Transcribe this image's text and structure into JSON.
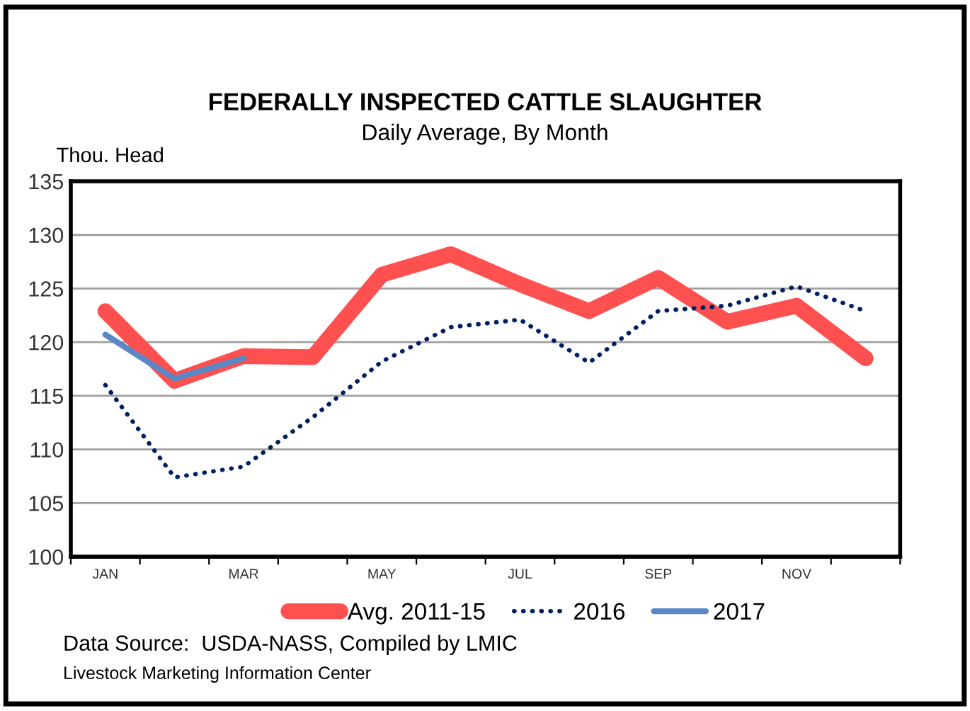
{
  "chart_data": {
    "type": "line",
    "title": "FEDERALLY INSPECTED CATTLE SLAUGHTER",
    "subtitle": "Daily Average, By Month",
    "ylabel": "Thou. Head",
    "categories": [
      "JAN",
      null,
      "MAR",
      null,
      "MAY",
      null,
      "JUL",
      null,
      "SEP",
      null,
      "NOV",
      null
    ],
    "series": [
      {
        "name": "Avg. 2011-15",
        "color": "#ff5050",
        "line_style": "solid",
        "values": [
          122.9,
          116.4,
          118.7,
          118.6,
          126.3,
          128.2,
          125.4,
          122.9,
          126.0,
          121.9,
          123.4,
          118.5
        ]
      },
      {
        "name": "2016",
        "color": "#002060",
        "line_style": "dotted",
        "values": [
          116.0,
          107.4,
          108.4,
          113.0,
          118.2,
          121.4,
          122.1,
          118.1,
          122.9,
          123.4,
          125.2,
          122.9
        ]
      },
      {
        "name": "2017",
        "color": "#5b87c5",
        "line_style": "solid",
        "values": [
          120.7,
          116.6,
          118.5,
          null,
          null,
          null,
          null,
          null,
          null,
          null,
          null,
          null
        ]
      }
    ],
    "ylim": [
      100,
      135
    ],
    "yticks": [
      100,
      105,
      110,
      115,
      120,
      125,
      130,
      135
    ],
    "grid": "y",
    "legend": "bottom",
    "marker": "none",
    "annotations": [
      "Data Source:  USDA-NASS, Compiled by LMIC",
      "Livestock Marketing Information Center"
    ]
  }
}
